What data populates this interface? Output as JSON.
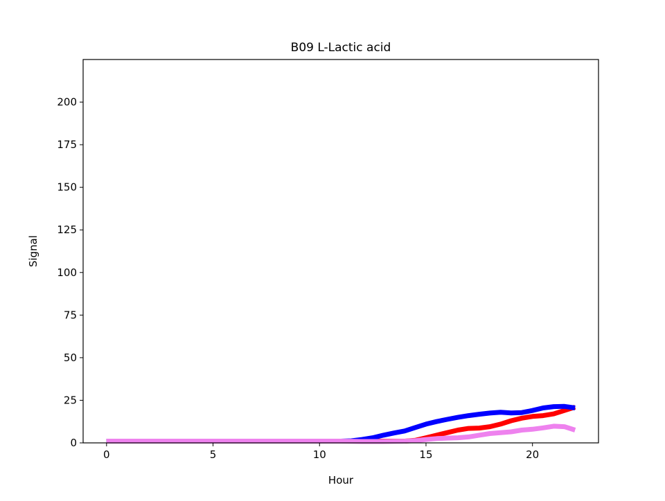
{
  "chart_data": {
    "type": "line",
    "title": "B09 L-Lactic acid",
    "xlabel": "Hour",
    "ylabel": "Signal",
    "xlim": [
      -1.1,
      23.1
    ],
    "ylim": [
      0,
      225
    ],
    "xticks": [
      0,
      5,
      10,
      15,
      20
    ],
    "yticks": [
      0,
      25,
      50,
      75,
      100,
      125,
      150,
      175,
      200
    ],
    "grid": false,
    "legend": "none",
    "series": [
      {
        "color": "#ff0000",
        "x": [
          0,
          1,
          2,
          3,
          4,
          5,
          6,
          7,
          8,
          9,
          10,
          11,
          12,
          13,
          14,
          14.5,
          15,
          15.5,
          16,
          16.5,
          17,
          17.5,
          18,
          18.5,
          19,
          19.5,
          20,
          20.5,
          21,
          21.5,
          22
        ],
        "y": [
          1,
          1,
          1,
          1,
          1,
          1,
          1,
          1,
          1,
          1,
          1,
          1,
          1,
          1,
          1,
          1.5,
          3,
          4.5,
          6,
          7.5,
          8.5,
          8.7,
          9.5,
          11,
          13,
          14.5,
          15.5,
          16,
          17,
          19,
          21
        ]
      },
      {
        "color": "#0000ff",
        "x": [
          0,
          1,
          2,
          3,
          4,
          5,
          6,
          7,
          8,
          9,
          10,
          11,
          11.5,
          12,
          12.5,
          13,
          13.5,
          14,
          14.5,
          15,
          15.5,
          16,
          16.5,
          17,
          17.5,
          18,
          18.5,
          19,
          19.5,
          20,
          20.5,
          21,
          21.5,
          22
        ],
        "y": [
          1,
          1,
          1,
          1,
          1,
          1,
          1,
          1,
          1,
          1,
          1,
          1,
          1.2,
          2,
          3,
          4.5,
          5.8,
          7,
          9,
          11,
          12.5,
          13.8,
          15,
          16,
          16.8,
          17.5,
          18,
          17.6,
          17.8,
          19,
          20.5,
          21.3,
          21.4,
          20.5
        ]
      },
      {
        "color": "#ee82ee",
        "x": [
          0,
          1,
          2,
          3,
          4,
          5,
          6,
          7,
          8,
          9,
          10,
          11,
          12,
          13,
          14,
          14.5,
          15,
          15.5,
          16,
          16.5,
          17,
          17.5,
          18,
          18.5,
          19,
          19.5,
          20,
          20.5,
          21,
          21.5,
          22
        ],
        "y": [
          1,
          1,
          1,
          1,
          1,
          1,
          1,
          1,
          1,
          1,
          1,
          1,
          0.8,
          0.8,
          1,
          1.3,
          2,
          2.5,
          2.8,
          3,
          3.5,
          4.5,
          5.5,
          6,
          6.5,
          7.5,
          8,
          8.8,
          9.8,
          9.5,
          7.5
        ]
      }
    ]
  }
}
